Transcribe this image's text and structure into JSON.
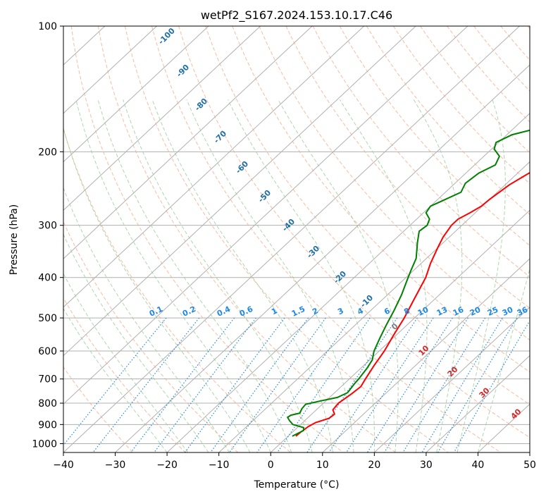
{
  "chart_data": {
    "type": "line",
    "title": "wetPf2_S167.2024.153.10.17.C46",
    "xlabel": "Temperature (°C)",
    "ylabel": "Pressure (hPa)",
    "xlim": [
      -40,
      50
    ],
    "ylim": [
      1050,
      100
    ],
    "yscale": "log",
    "grid": true,
    "x_ticks": [
      -40,
      -30,
      -20,
      -10,
      0,
      10,
      20,
      30,
      40,
      50
    ],
    "y_ticks": [
      100,
      200,
      300,
      400,
      500,
      600,
      700,
      800,
      900,
      1000
    ],
    "colors": {
      "temperature": "#ff0000",
      "dewpoint": "#008000",
      "dry_adiabats": "#f4a582",
      "moist_adiabats": "#99cc99",
      "mixing_ratio": "#1e88e5",
      "isotherm_labels": "#1f6fa8",
      "adiabat_labels": "#d62728",
      "zero_label": "#808080"
    },
    "series": [
      {
        "key": "temperature",
        "points": [
          [
            1.5,
            960
          ],
          [
            1.6,
            940
          ],
          [
            1.9,
            910
          ],
          [
            2.5,
            890
          ],
          [
            4.2,
            870
          ],
          [
            4.4,
            850
          ],
          [
            3.2,
            830
          ],
          [
            2.9,
            800
          ],
          [
            3.5,
            760
          ],
          [
            3.8,
            730
          ],
          [
            3.1,
            700
          ],
          [
            2.0,
            650
          ],
          [
            1.0,
            600
          ],
          [
            -0.5,
            550
          ],
          [
            -2.0,
            500
          ],
          [
            -4.0,
            450
          ],
          [
            -6.2,
            400
          ],
          [
            -8.2,
            370
          ],
          [
            -10.0,
            340
          ],
          [
            -11.2,
            320
          ],
          [
            -12.0,
            300
          ],
          [
            -12.0,
            290
          ],
          [
            -11.0,
            280
          ],
          [
            -10.2,
            270
          ],
          [
            -10.0,
            260
          ],
          [
            -9.2,
            240
          ],
          [
            -7.8,
            225
          ],
          [
            -5.0,
            212
          ],
          [
            -1.0,
            200
          ],
          [
            4.5,
            185
          ],
          [
            8.5,
            170
          ],
          [
            12.5,
            155
          ],
          [
            14.0,
            145
          ],
          [
            17.8,
            130
          ],
          [
            20.6,
            120
          ],
          [
            23.5,
            110
          ],
          [
            26.0,
            100
          ]
        ]
      },
      {
        "key": "dewpoint",
        "points": [
          [
            0.8,
            960
          ],
          [
            1.8,
            930
          ],
          [
            1.2,
            915
          ],
          [
            -1.5,
            900
          ],
          [
            -3.0,
            880
          ],
          [
            -4.0,
            865
          ],
          [
            -3.8,
            855
          ],
          [
            -2.5,
            845
          ],
          [
            -3.0,
            825
          ],
          [
            -3.2,
            805
          ],
          [
            -1.0,
            790
          ],
          [
            1.5,
            775
          ],
          [
            2.5,
            755
          ],
          [
            2.0,
            720
          ],
          [
            1.8,
            700
          ],
          [
            1.2,
            660
          ],
          [
            0.5,
            630
          ],
          [
            -1.0,
            600
          ],
          [
            -2.5,
            560
          ],
          [
            -4.0,
            520
          ],
          [
            -5.5,
            480
          ],
          [
            -7.3,
            440
          ],
          [
            -9.0,
            410
          ],
          [
            -10.5,
            385
          ],
          [
            -12.0,
            360
          ],
          [
            -15.0,
            330
          ],
          [
            -17.0,
            310
          ],
          [
            -16.7,
            300
          ],
          [
            -17.5,
            290
          ],
          [
            -19.5,
            280
          ],
          [
            -20.0,
            270
          ],
          [
            -18.5,
            260
          ],
          [
            -17.0,
            250
          ],
          [
            -18.0,
            238
          ],
          [
            -17.5,
            225
          ],
          [
            -16.0,
            215
          ],
          [
            -17.0,
            205
          ],
          [
            -19.5,
            197
          ],
          [
            -20.5,
            190
          ],
          [
            -19.0,
            182
          ],
          [
            -15.0,
            175
          ],
          [
            -11.0,
            160
          ],
          [
            -6.0,
            145
          ],
          [
            -2.0,
            133
          ],
          [
            2.0,
            120
          ],
          [
            6.0,
            108
          ],
          [
            8.5,
            100
          ]
        ]
      }
    ],
    "isotherm_labels": [
      "-100",
      "-90",
      "-80",
      "-70",
      "-60",
      "-50",
      "-40",
      "-30",
      "-20",
      "-10"
    ],
    "mixing_ratio_labels": [
      "0.1",
      "0.2",
      "0.4",
      "0.6",
      "1",
      "1.5",
      "2",
      "3",
      "4",
      "6",
      "8",
      "10",
      "13",
      "16",
      "20",
      "25",
      "30",
      "36"
    ],
    "adiabat_labels": [
      "0",
      "10",
      "20",
      "30",
      "40"
    ]
  }
}
